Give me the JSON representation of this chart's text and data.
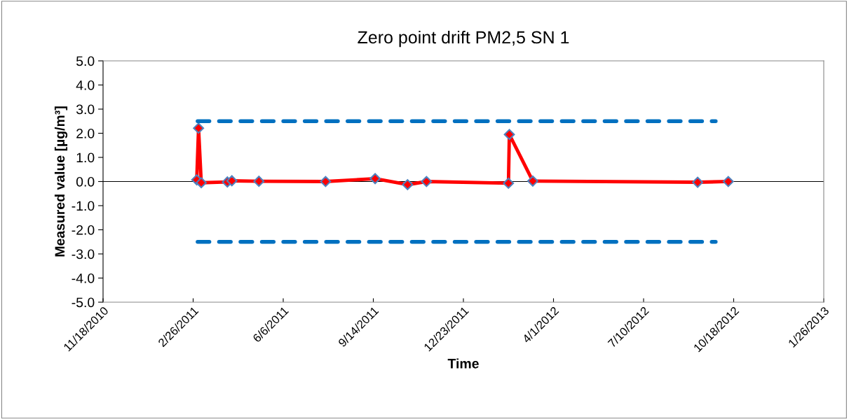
{
  "chart_data": {
    "type": "line",
    "title": "Zero point drift PM2,5 SN 1",
    "xlabel": "Time",
    "ylabel": "Measured value [µg/m³]",
    "series": [
      {
        "color": "#ff0000",
        "marker": "diamond",
        "line_style": "solid",
        "x": [
          "2011-03-02",
          "2011-03-04",
          "2011-03-07",
          "2011-04-05",
          "2011-04-10",
          "2011-05-10",
          "2011-07-23",
          "2011-09-16",
          "2011-10-22",
          "2011-11-12",
          "2012-02-11",
          "2012-02-12",
          "2012-03-09",
          "2012-09-08",
          "2012-10-12"
        ],
        "values": [
          0.07,
          2.21,
          -0.05,
          -0.02,
          0.03,
          0.01,
          0.0,
          0.12,
          -0.13,
          0.0,
          -0.07,
          1.95,
          0.02,
          -0.03,
          0.0
        ]
      },
      {
        "color": "#0070c0",
        "marker": "none",
        "line_style": "dashed",
        "x": [
          "2011-03-03",
          "2012-09-28"
        ],
        "values": [
          2.5,
          2.5
        ]
      },
      {
        "color": "#0070c0",
        "marker": "none",
        "line_style": "dashed",
        "x": [
          "2011-03-03",
          "2012-09-28"
        ],
        "values": [
          -2.5,
          -2.5
        ]
      }
    ],
    "ref_lines": [
      {
        "axis": "y",
        "value": 0,
        "color": "#000000"
      }
    ],
    "xlim": [
      "2010-11-18",
      "2013-01-26"
    ],
    "xticks": [
      {
        "value": "2010-11-18",
        "label": "11/18/2010"
      },
      {
        "value": "2011-02-26",
        "label": "2/26/2011"
      },
      {
        "value": "2011-06-06",
        "label": "6/6/2011"
      },
      {
        "value": "2011-09-14",
        "label": "9/14/2011"
      },
      {
        "value": "2011-12-23",
        "label": "12/23/2011"
      },
      {
        "value": "2012-04-01",
        "label": "4/1/2012"
      },
      {
        "value": "2012-07-10",
        "label": "7/10/2012"
      },
      {
        "value": "2012-10-18",
        "label": "10/18/2012"
      },
      {
        "value": "2013-01-26",
        "label": "1/26/2013"
      }
    ],
    "ylim": [
      -5,
      5
    ],
    "yticks": [
      {
        "value": -5,
        "label": "-5.0"
      },
      {
        "value": -4,
        "label": "-4.0"
      },
      {
        "value": -3,
        "label": "-3.0"
      },
      {
        "value": -2,
        "label": "-2.0"
      },
      {
        "value": -1,
        "label": "-1.0"
      },
      {
        "value": 0,
        "label": "0.0"
      },
      {
        "value": 1,
        "label": "1.0"
      },
      {
        "value": 2,
        "label": "2.0"
      },
      {
        "value": 3,
        "label": "3.0"
      },
      {
        "value": 4,
        "label": "4.0"
      },
      {
        "value": 5,
        "label": "5.0"
      }
    ],
    "grid": false,
    "legend": false
  }
}
